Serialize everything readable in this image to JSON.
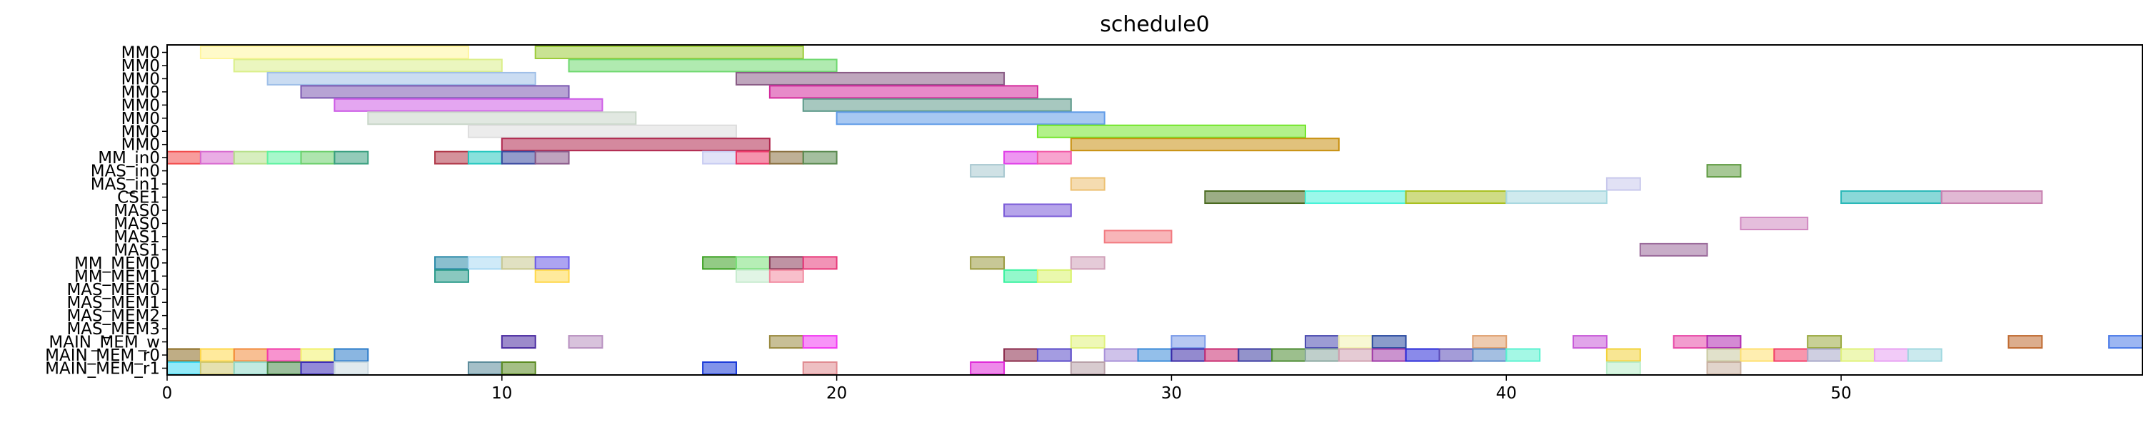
{
  "chart_data": {
    "type": "gantt",
    "title": "schedule0",
    "xlabel": "",
    "ylabel": "",
    "xlim": [
      0,
      59
    ],
    "xticks": [
      0,
      10,
      20,
      30,
      40,
      50
    ],
    "grid": false,
    "rows": [
      "MM0",
      "MM0",
      "MM0",
      "MM0",
      "MM0",
      "MM0",
      "MM0",
      "MM0",
      "MM_in0",
      "MAS_in0",
      "MAS_in1",
      "CSE1",
      "MAS0",
      "MAS0",
      "MAS1",
      "MAS1",
      "MM_MEM0",
      "MM_MEM1",
      "MAS_MEM0",
      "MAS_MEM1",
      "MAS_MEM2",
      "MAS_MEM3",
      "MAIN_MEM_w",
      "MAIN_MEM_r0",
      "MAIN_MEM_r1"
    ],
    "bars": [
      {
        "row": 0,
        "start": 1,
        "end": 9,
        "color": "#fff59d"
      },
      {
        "row": 0,
        "start": 11,
        "end": 19,
        "color": "#9ccc3a"
      },
      {
        "row": 1,
        "start": 2,
        "end": 10,
        "color": "#dbef8a"
      },
      {
        "row": 1,
        "start": 12,
        "end": 20,
        "color": "#6fd86f"
      },
      {
        "row": 2,
        "start": 3,
        "end": 11,
        "color": "#9fbfe8"
      },
      {
        "row": 2,
        "start": 17,
        "end": 25,
        "color": "#8a5c86"
      },
      {
        "row": 3,
        "start": 4,
        "end": 12,
        "color": "#7b58b0"
      },
      {
        "row": 3,
        "start": 18,
        "end": 26,
        "color": "#d42a9c"
      },
      {
        "row": 4,
        "start": 5,
        "end": 13,
        "color": "#cd5ce6"
      },
      {
        "row": 4,
        "start": 19,
        "end": 27,
        "color": "#5e9a8a"
      },
      {
        "row": 5,
        "start": 6,
        "end": 14,
        "color": "#c8d6c8"
      },
      {
        "row": 5,
        "start": 20,
        "end": 28,
        "color": "#5f9be8"
      },
      {
        "row": 6,
        "start": 9,
        "end": 17,
        "color": "#dddddd"
      },
      {
        "row": 6,
        "start": 26,
        "end": 34,
        "color": "#72e62a"
      },
      {
        "row": 7,
        "start": 10,
        "end": 18,
        "color": "#b0284e"
      },
      {
        "row": 7,
        "start": 27,
        "end": 35,
        "color": "#c89010"
      },
      {
        "row": 8,
        "start": 0,
        "end": 1,
        "color": "#f24a4a"
      },
      {
        "row": 8,
        "start": 1,
        "end": 2,
        "color": "#d86ad0"
      },
      {
        "row": 8,
        "start": 2,
        "end": 3,
        "color": "#b6e08a"
      },
      {
        "row": 8,
        "start": 3,
        "end": 4,
        "color": "#5ff2a0"
      },
      {
        "row": 8,
        "start": 4,
        "end": 5,
        "color": "#6ccf6c"
      },
      {
        "row": 8,
        "start": 5,
        "end": 6,
        "color": "#3aa080"
      },
      {
        "row": 8,
        "start": 8,
        "end": 9,
        "color": "#b03848"
      },
      {
        "row": 8,
        "start": 9,
        "end": 10,
        "color": "#26c8c0"
      },
      {
        "row": 8,
        "start": 10,
        "end": 11,
        "color": "#3a4aa0"
      },
      {
        "row": 8,
        "start": 11,
        "end": 12,
        "color": "#8a5a8a"
      },
      {
        "row": 8,
        "start": 16,
        "end": 17,
        "color": "#c8ccf2"
      },
      {
        "row": 8,
        "start": 17,
        "end": 18,
        "color": "#ec3a6a"
      },
      {
        "row": 8,
        "start": 18,
        "end": 19,
        "color": "#8a7040"
      },
      {
        "row": 8,
        "start": 19,
        "end": 20,
        "color": "#5a8a50"
      },
      {
        "row": 8,
        "start": 25,
        "end": 26,
        "color": "#e040e8"
      },
      {
        "row": 8,
        "start": 26,
        "end": 27,
        "color": "#f25aa8"
      },
      {
        "row": 9,
        "start": 24,
        "end": 25,
        "color": "#a8c8d0"
      },
      {
        "row": 9,
        "start": 46,
        "end": 47,
        "color": "#5e9a40"
      },
      {
        "row": 10,
        "start": 27,
        "end": 28,
        "color": "#ecc070"
      },
      {
        "row": 10,
        "start": 43,
        "end": 44,
        "color": "#c8c8ec"
      },
      {
        "row": 11,
        "start": 31,
        "end": 34,
        "color": "#4a6a20"
      },
      {
        "row": 11,
        "start": 34,
        "end": 37,
        "color": "#48f2d8"
      },
      {
        "row": 11,
        "start": 37,
        "end": 40,
        "color": "#a8c020"
      },
      {
        "row": 11,
        "start": 40,
        "end": 43,
        "color": "#a8d8e0"
      },
      {
        "row": 11,
        "start": 50,
        "end": 53,
        "color": "#2ab8b8"
      },
      {
        "row": 11,
        "start": 53,
        "end": 56,
        "color": "#c880b0"
      },
      {
        "row": 12,
        "start": 25,
        "end": 27,
        "color": "#7a5ad8"
      },
      {
        "row": 13,
        "start": 47,
        "end": 49,
        "color": "#d088c0"
      },
      {
        "row": 14,
        "start": 28,
        "end": 30,
        "color": "#f27a80"
      },
      {
        "row": 15,
        "start": 44,
        "end": 46,
        "color": "#9a6a9a"
      },
      {
        "row": 16,
        "start": 8,
        "end": 9,
        "color": "#2a8aa8"
      },
      {
        "row": 16,
        "start": 9,
        "end": 10,
        "color": "#a8d8f2"
      },
      {
        "row": 16,
        "start": 10,
        "end": 11,
        "color": "#c8c890"
      },
      {
        "row": 16,
        "start": 11,
        "end": 12,
        "color": "#6a5ae8"
      },
      {
        "row": 16,
        "start": 16,
        "end": 17,
        "color": "#3aa020"
      },
      {
        "row": 16,
        "start": 17,
        "end": 18,
        "color": "#7ae07a"
      },
      {
        "row": 16,
        "start": 18,
        "end": 19,
        "color": "#8a3a5a"
      },
      {
        "row": 16,
        "start": 19,
        "end": 20,
        "color": "#e83a7a"
      },
      {
        "row": 16,
        "start": 24,
        "end": 25,
        "color": "#9a9a40"
      },
      {
        "row": 16,
        "start": 27,
        "end": 28,
        "color": "#d0a0b8"
      },
      {
        "row": 17,
        "start": 8,
        "end": 9,
        "color": "#2a9a8a"
      },
      {
        "row": 17,
        "start": 11,
        "end": 12,
        "color": "#ffd84a"
      },
      {
        "row": 17,
        "start": 17,
        "end": 18,
        "color": "#c8ecd0"
      },
      {
        "row": 17,
        "start": 18,
        "end": 19,
        "color": "#f28aa0"
      },
      {
        "row": 17,
        "start": 25,
        "end": 26,
        "color": "#3af2a0"
      },
      {
        "row": 17,
        "start": 26,
        "end": 27,
        "color": "#d8f26a"
      },
      {
        "row": 22,
        "start": 10,
        "end": 11,
        "color": "#4a2aa0"
      },
      {
        "row": 22,
        "start": 12,
        "end": 13,
        "color": "#b890c0"
      },
      {
        "row": 22,
        "start": 18,
        "end": 19,
        "color": "#9a8a40"
      },
      {
        "row": 22,
        "start": 19,
        "end": 20,
        "color": "#f23af2"
      },
      {
        "row": 22,
        "start": 27,
        "end": 28,
        "color": "#e0f27a"
      },
      {
        "row": 22,
        "start": 30,
        "end": 31,
        "color": "#7a9ae8"
      },
      {
        "row": 22,
        "start": 34,
        "end": 35,
        "color": "#4a4ab0"
      },
      {
        "row": 22,
        "start": 35,
        "end": 36,
        "color": "#f2f2b0"
      },
      {
        "row": 22,
        "start": 36,
        "end": 37,
        "color": "#2a4aa0"
      },
      {
        "row": 22,
        "start": 39,
        "end": 40,
        "color": "#e0a070"
      },
      {
        "row": 22,
        "start": 42,
        "end": 43,
        "color": "#c85ad8"
      },
      {
        "row": 22,
        "start": 45,
        "end": 46,
        "color": "#e84aa8"
      },
      {
        "row": 22,
        "start": 46,
        "end": 47,
        "color": "#b02ab0"
      },
      {
        "row": 22,
        "start": 49,
        "end": 50,
        "color": "#9aaa40"
      },
      {
        "row": 22,
        "start": 55,
        "end": 56,
        "color": "#c06a30"
      },
      {
        "row": 22,
        "start": 58,
        "end": 59,
        "color": "#4a7ae8"
      },
      {
        "row": 23,
        "start": 0,
        "end": 1,
        "color": "#8a6a20"
      },
      {
        "row": 23,
        "start": 1,
        "end": 2,
        "color": "#ffd84a"
      },
      {
        "row": 23,
        "start": 2,
        "end": 3,
        "color": "#f28a3a"
      },
      {
        "row": 23,
        "start": 3,
        "end": 4,
        "color": "#f23aa8"
      },
      {
        "row": 23,
        "start": 4,
        "end": 5,
        "color": "#f2f26a"
      },
      {
        "row": 23,
        "start": 5,
        "end": 6,
        "color": "#2a7ac8"
      },
      {
        "row": 23,
        "start": 25,
        "end": 26,
        "color": "#8a2a4a"
      },
      {
        "row": 23,
        "start": 26,
        "end": 27,
        "color": "#5a4ac8"
      },
      {
        "row": 23,
        "start": 28,
        "end": 29,
        "color": "#a890d8"
      },
      {
        "row": 23,
        "start": 29,
        "end": 30,
        "color": "#3a8ad8"
      },
      {
        "row": 23,
        "start": 30,
        "end": 31,
        "color": "#3a2aa8"
      },
      {
        "row": 23,
        "start": 31,
        "end": 32,
        "color": "#c82a70"
      },
      {
        "row": 23,
        "start": 32,
        "end": 33,
        "color": "#3a3aa0"
      },
      {
        "row": 23,
        "start": 33,
        "end": 34,
        "color": "#4a8a30"
      },
      {
        "row": 23,
        "start": 34,
        "end": 35,
        "color": "#8aa8a0"
      },
      {
        "row": 23,
        "start": 35,
        "end": 36,
        "color": "#d0a0b0"
      },
      {
        "row": 23,
        "start": 36,
        "end": 37,
        "color": "#a03aa8"
      },
      {
        "row": 23,
        "start": 37,
        "end": 38,
        "color": "#2a2ad8"
      },
      {
        "row": 23,
        "start": 38,
        "end": 39,
        "color": "#5a4ab8"
      },
      {
        "row": 23,
        "start": 39,
        "end": 40,
        "color": "#5a8ac8"
      },
      {
        "row": 23,
        "start": 40,
        "end": 41,
        "color": "#5af2d0"
      },
      {
        "row": 23,
        "start": 43,
        "end": 44,
        "color": "#f2d23a"
      },
      {
        "row": 23,
        "start": 46,
        "end": 47,
        "color": "#c8c8a0"
      },
      {
        "row": 23,
        "start": 47,
        "end": 48,
        "color": "#ffe070"
      },
      {
        "row": 23,
        "start": 48,
        "end": 49,
        "color": "#f2406a"
      },
      {
        "row": 23,
        "start": 49,
        "end": 50,
        "color": "#a8a8c8"
      },
      {
        "row": 23,
        "start": 50,
        "end": 51,
        "color": "#e0f27a"
      },
      {
        "row": 23,
        "start": 51,
        "end": 52,
        "color": "#e8a0f2"
      },
      {
        "row": 23,
        "start": 52,
        "end": 53,
        "color": "#a0d8e0"
      },
      {
        "row": 24,
        "start": 0,
        "end": 1,
        "color": "#3ad8f2"
      },
      {
        "row": 24,
        "start": 1,
        "end": 2,
        "color": "#d0c870"
      },
      {
        "row": 24,
        "start": 2,
        "end": 3,
        "color": "#90d8c8"
      },
      {
        "row": 24,
        "start": 3,
        "end": 4,
        "color": "#4a8a4a"
      },
      {
        "row": 24,
        "start": 4,
        "end": 5,
        "color": "#3a2ab8"
      },
      {
        "row": 24,
        "start": 5,
        "end": 6,
        "color": "#c8d8e0"
      },
      {
        "row": 24,
        "start": 9,
        "end": 10,
        "color": "#5a8a9a"
      },
      {
        "row": 24,
        "start": 10,
        "end": 11,
        "color": "#5a8a20"
      },
      {
        "row": 24,
        "start": 16,
        "end": 17,
        "color": "#1a3ad8"
      },
      {
        "row": 24,
        "start": 19,
        "end": 20,
        "color": "#e08a90"
      },
      {
        "row": 24,
        "start": 24,
        "end": 25,
        "color": "#e02ad8"
      },
      {
        "row": 24,
        "start": 27,
        "end": 28,
        "color": "#b8a0a8"
      },
      {
        "row": 24,
        "start": 43,
        "end": 44,
        "color": "#b8ecc8"
      },
      {
        "row": 24,
        "start": 46,
        "end": 47,
        "color": "#c8b0a0"
      }
    ]
  }
}
